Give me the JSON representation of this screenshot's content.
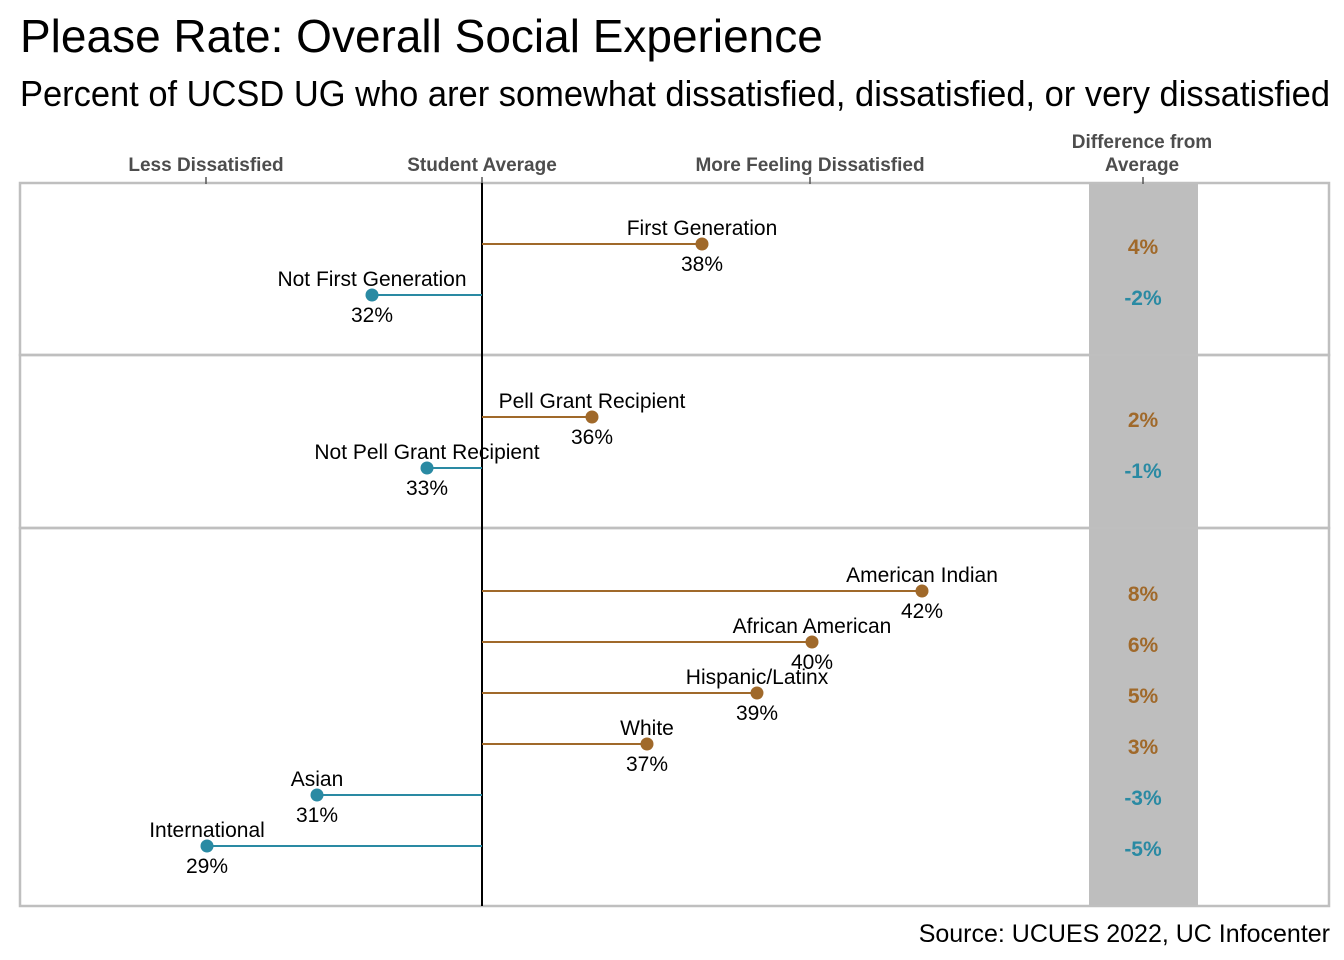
{
  "title": "Please Rate: Overall Social Experience",
  "subtitle": "Percent of UCSD UG who arer somewhat dissatisfied, dissatisfied, or very dissatisfied",
  "source": "Source: UCUES 2022, UC Infocenter",
  "colors": {
    "above": "#a0692a",
    "below": "#2a8aa3",
    "diff_panel": "#bebebe",
    "frame": "#bfbfbf"
  },
  "chart_data": {
    "type": "dot",
    "student_average": 34,
    "xlim": [
      26,
      46
    ],
    "top_axis_labels": {
      "less": "Less Dissatisfied",
      "average": "Student Average",
      "more": "More Feeling Dissatisfied",
      "diff_line1": "Difference from",
      "diff_line2": "Average"
    },
    "panels": [
      {
        "points": [
          {
            "label": "First Generation",
            "value": 38,
            "value_label": "38%",
            "diff": "4%",
            "direction": "above"
          },
          {
            "label": "Not First Generation",
            "value": 32,
            "value_label": "32%",
            "diff": "-2%",
            "direction": "below"
          }
        ]
      },
      {
        "points": [
          {
            "label": "Pell Grant Recipient",
            "value": 36,
            "value_label": "36%",
            "diff": "2%",
            "direction": "above"
          },
          {
            "label": "Not Pell Grant Recipient",
            "value": 33,
            "value_label": "33%",
            "diff": "-1%",
            "direction": "below"
          }
        ]
      },
      {
        "points": [
          {
            "label": "American Indian",
            "value": 42,
            "value_label": "42%",
            "diff": "8%",
            "direction": "above"
          },
          {
            "label": "African American",
            "value": 40,
            "value_label": "40%",
            "diff": "6%",
            "direction": "above"
          },
          {
            "label": "Hispanic/Latinx",
            "value": 39,
            "value_label": "39%",
            "diff": "5%",
            "direction": "above"
          },
          {
            "label": "White",
            "value": 37,
            "value_label": "37%",
            "diff": "3%",
            "direction": "above"
          },
          {
            "label": "Asian",
            "value": 31,
            "value_label": "31%",
            "diff": "-3%",
            "direction": "below"
          },
          {
            "label": "International",
            "value": 29,
            "value_label": "29%",
            "diff": "-5%",
            "direction": "below"
          }
        ]
      }
    ]
  }
}
